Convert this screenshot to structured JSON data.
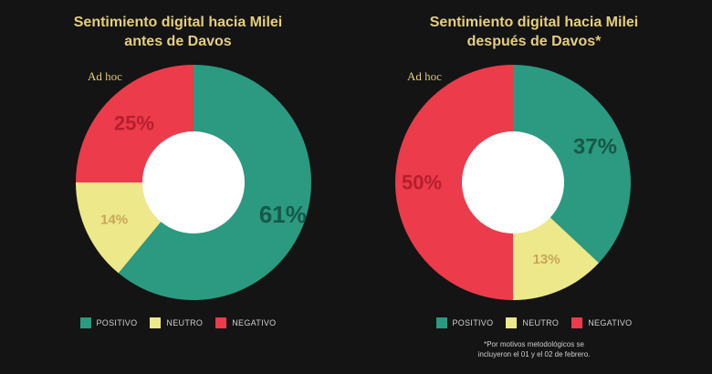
{
  "brand": {
    "part1": "Ad",
    "part2": "hoc"
  },
  "colors": {
    "positivo": "#2b9a80",
    "neutro": "#ede88a",
    "negativo": "#ec3b4b",
    "title": "#e6cf7a"
  },
  "legend": {
    "positivo": "POSITIVO",
    "neutro": "NEUTRO",
    "negativo": "NEGATIVO"
  },
  "footnote": {
    "line1": "*Por motivos metodológicos se",
    "line2": "incluyeron el 01 y el 02 de febrero."
  },
  "chart_data": [
    {
      "type": "pie",
      "title_line1": "Sentimiento digital hacia Milei",
      "title_line2": "antes de Davos",
      "slices": [
        {
          "name": "POSITIVO",
          "value": 61,
          "label": "61%"
        },
        {
          "name": "NEUTRO",
          "value": 14,
          "label": "14%"
        },
        {
          "name": "NEGATIVO",
          "value": 25,
          "label": "25%"
        }
      ]
    },
    {
      "type": "pie",
      "title_line1": "Sentimiento digital hacia Milei",
      "title_line2": "después de Davos*",
      "slices": [
        {
          "name": "POSITIVO",
          "value": 37,
          "label": "37%"
        },
        {
          "name": "NEUTRO",
          "value": 13,
          "label": "13%"
        },
        {
          "name": "NEGATIVO",
          "value": 50,
          "label": "50%"
        }
      ]
    }
  ]
}
